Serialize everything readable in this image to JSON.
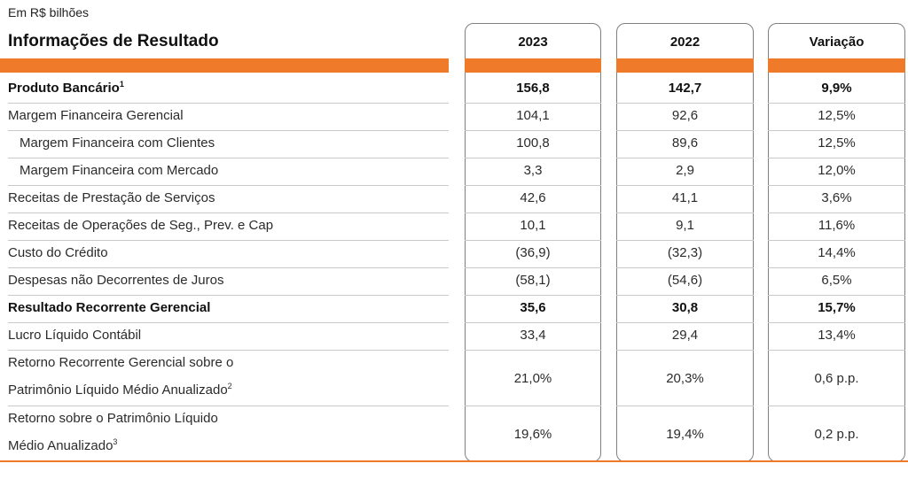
{
  "header": {
    "unit_note": "Em R$ bilhões",
    "title": "Informações de Resultado",
    "columns": [
      "2023",
      "2022",
      "Variação"
    ]
  },
  "rows": [
    {
      "label": "Produto Bancário",
      "sup": "1",
      "values": [
        "156,8",
        "142,7",
        "9,9%"
      ],
      "bold": true
    },
    {
      "label": "Margem Financeira Gerencial",
      "values": [
        "104,1",
        "92,6",
        "12,5%"
      ]
    },
    {
      "label": "Margem Financeira com Clientes",
      "values": [
        "100,8",
        "89,6",
        "12,5%"
      ],
      "indent": true
    },
    {
      "label": "Margem Financeira com Mercado",
      "values": [
        "3,3",
        "2,9",
        "12,0%"
      ],
      "indent": true
    },
    {
      "label": "Receitas de Prestação de Serviços",
      "values": [
        "42,6",
        "41,1",
        "3,6%"
      ]
    },
    {
      "label": "Receitas de Operações de Seg., Prev. e Cap",
      "values": [
        "10,1",
        "9,1",
        "11,6%"
      ]
    },
    {
      "label": "Custo do Crédito",
      "values": [
        "(36,9)",
        "(32,3)",
        "14,4%"
      ]
    },
    {
      "label": "Despesas não Decorrentes de Juros",
      "values": [
        "(58,1)",
        "(54,6)",
        "6,5%"
      ]
    },
    {
      "label": "Resultado Recorrente Gerencial",
      "values": [
        "35,6",
        "30,8",
        "15,7%"
      ],
      "bold": true
    },
    {
      "label": "Lucro Líquido Contábil",
      "values": [
        "33,4",
        "29,4",
        "13,4%"
      ]
    },
    {
      "label": "Retorno Recorrente Gerencial sobre o",
      "label2": "Patrimônio Líquido Médio Anualizado",
      "sup": "2",
      "values": [
        "21,0%",
        "20,3%",
        "0,6 p.p."
      ]
    },
    {
      "label": "Retorno sobre o Patrimônio Líquido",
      "label2": "Médio Anualizado",
      "sup": "3",
      "values": [
        "19,6%",
        "19,4%",
        "0,2 p.p."
      ]
    }
  ],
  "colors": {
    "accent": "#ef7a2a",
    "border": "#7f7f7f",
    "rule": "#c9c9c9"
  }
}
